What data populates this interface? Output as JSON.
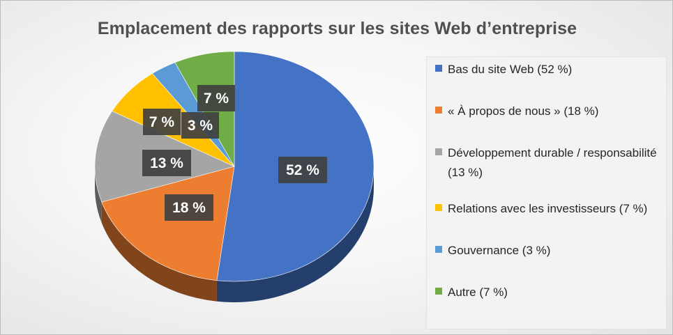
{
  "chart_data": {
    "type": "pie",
    "title": "Emplacement des rapports sur les sites Web d’entreprise",
    "categories": [
      "Bas du site Web (52 %)",
      "« À propos de nous » (18 %)",
      "Développement durable / responsabilité (13 %)",
      "Relations avec les investisseurs (7 %)",
      "Gouvernance (3 %)",
      "Autre (7 %)"
    ],
    "values": [
      52,
      18,
      13,
      7,
      3,
      7
    ],
    "data_labels": [
      "52 %",
      "18 %",
      "13 %",
      "7 %",
      "3 %",
      "7 %"
    ],
    "colors": [
      "#4472C4",
      "#ED7D31",
      "#A5A5A5",
      "#FFC000",
      "#5B9BD5",
      "#70AD47"
    ],
    "style": "3d",
    "legend_position": "right"
  }
}
